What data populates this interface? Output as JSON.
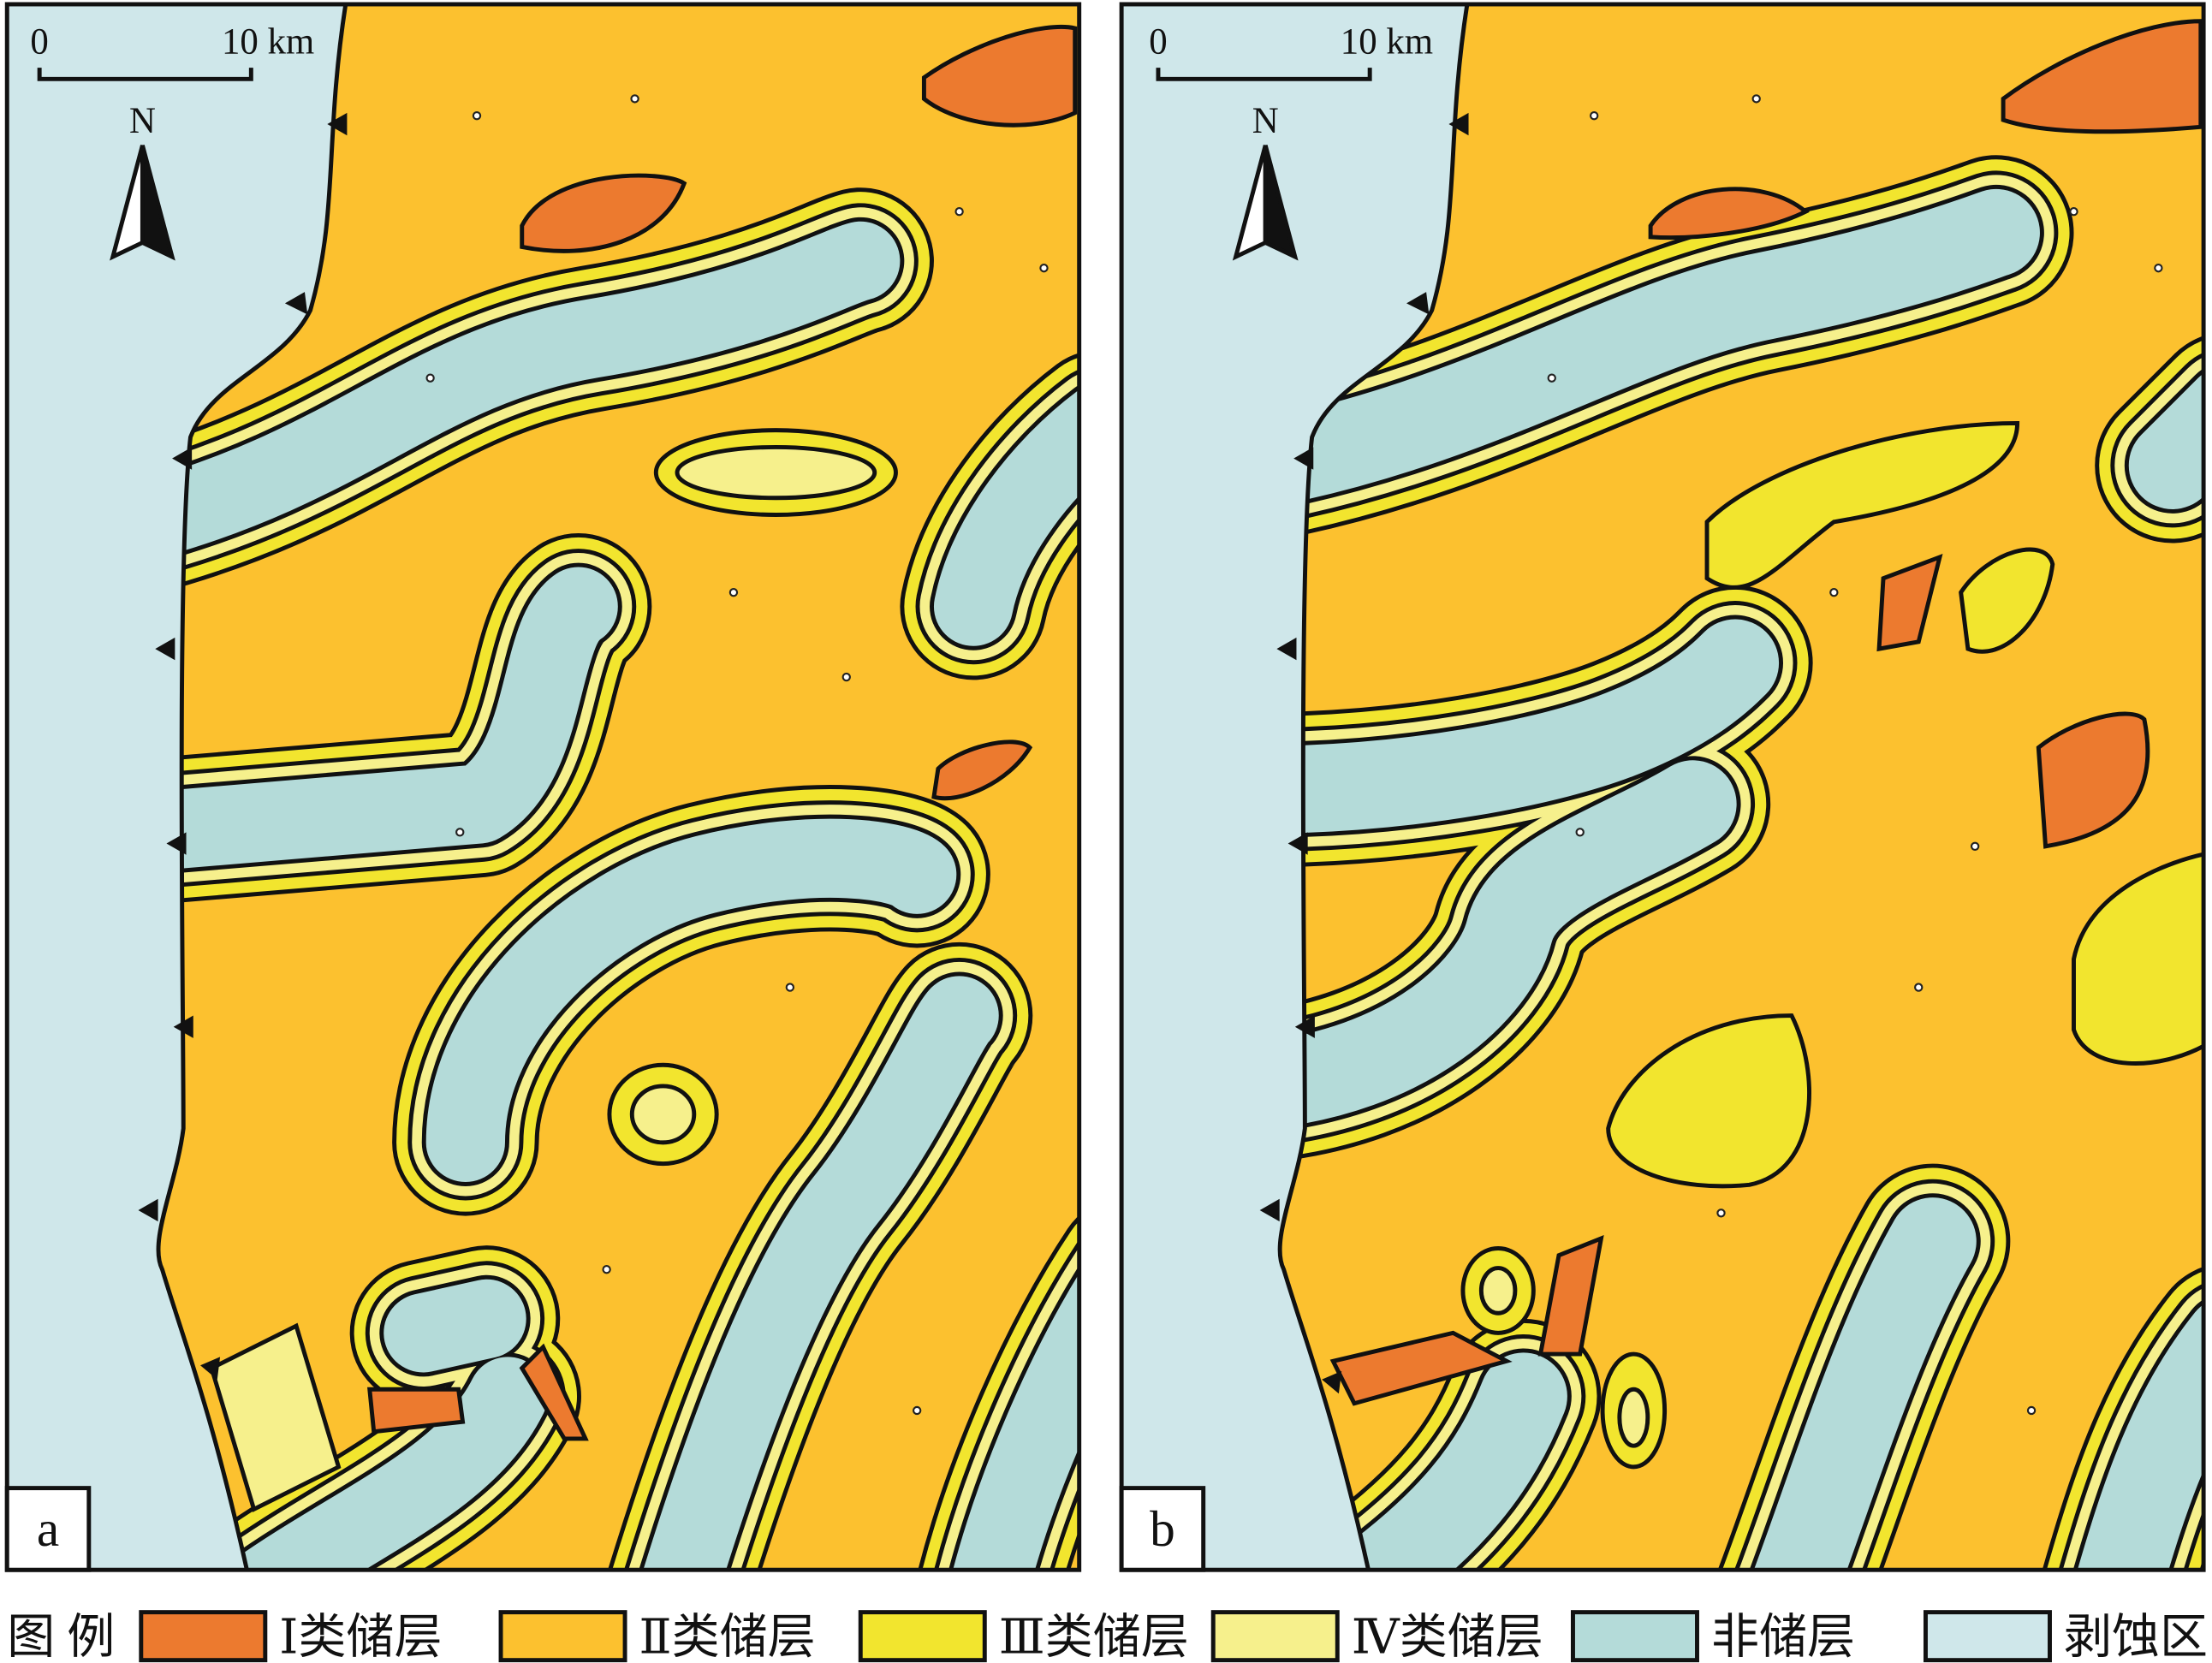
{
  "panels": [
    {
      "label": "a",
      "scale_start": "0",
      "scale_end": "10 km",
      "north": "N"
    },
    {
      "label": "b",
      "scale_start": "0",
      "scale_end": "10 km",
      "north": "N"
    }
  ],
  "legend": {
    "title": "图 例",
    "items": [
      {
        "label": "Ⅰ类储层",
        "color": "#ec7a2f"
      },
      {
        "label": "Ⅱ类储层",
        "color": "#fcc12f"
      },
      {
        "label": "Ⅲ类储层",
        "color": "#f2e52e"
      },
      {
        "label": "Ⅳ类储层",
        "color": "#f6f08c"
      },
      {
        "label": "非储层",
        "color": "#b4dbd9"
      },
      {
        "label": "剥蚀区",
        "color": "#cfe7ea"
      }
    ]
  }
}
